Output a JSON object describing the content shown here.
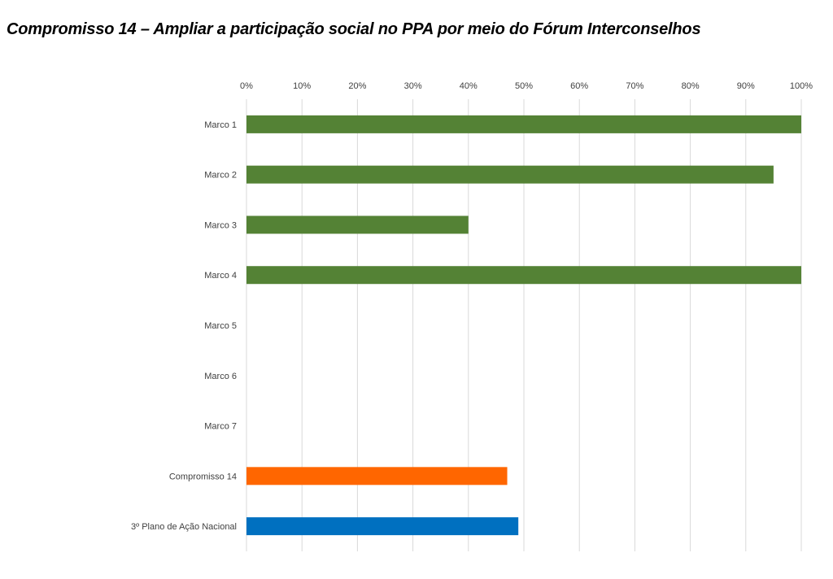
{
  "chart_data": {
    "type": "bar",
    "orientation": "horizontal",
    "title": "Compromisso 14 – Ampliar a participação social no PPA por meio do Fórum Interconselhos",
    "categories": [
      "Marco 1",
      "Marco 2",
      "Marco 3",
      "Marco 4",
      "Marco 5",
      "Marco 6",
      "Marco 7",
      "Compromisso 14",
      "3º Plano de Ação Nacional"
    ],
    "values": [
      100,
      95,
      40,
      100,
      0,
      0,
      0,
      47,
      49
    ],
    "colors": [
      "#548235",
      "#548235",
      "#548235",
      "#548235",
      "#548235",
      "#548235",
      "#548235",
      "#FF6600",
      "#0070C0"
    ],
    "xlabel": "",
    "ylabel": "",
    "xlim": [
      0,
      100
    ],
    "x_ticks": [
      "0%",
      "10%",
      "20%",
      "30%",
      "40%",
      "50%",
      "60%",
      "70%",
      "80%",
      "90%",
      "100%"
    ],
    "x_axis_position": "top",
    "grid": true,
    "legend": "none"
  }
}
